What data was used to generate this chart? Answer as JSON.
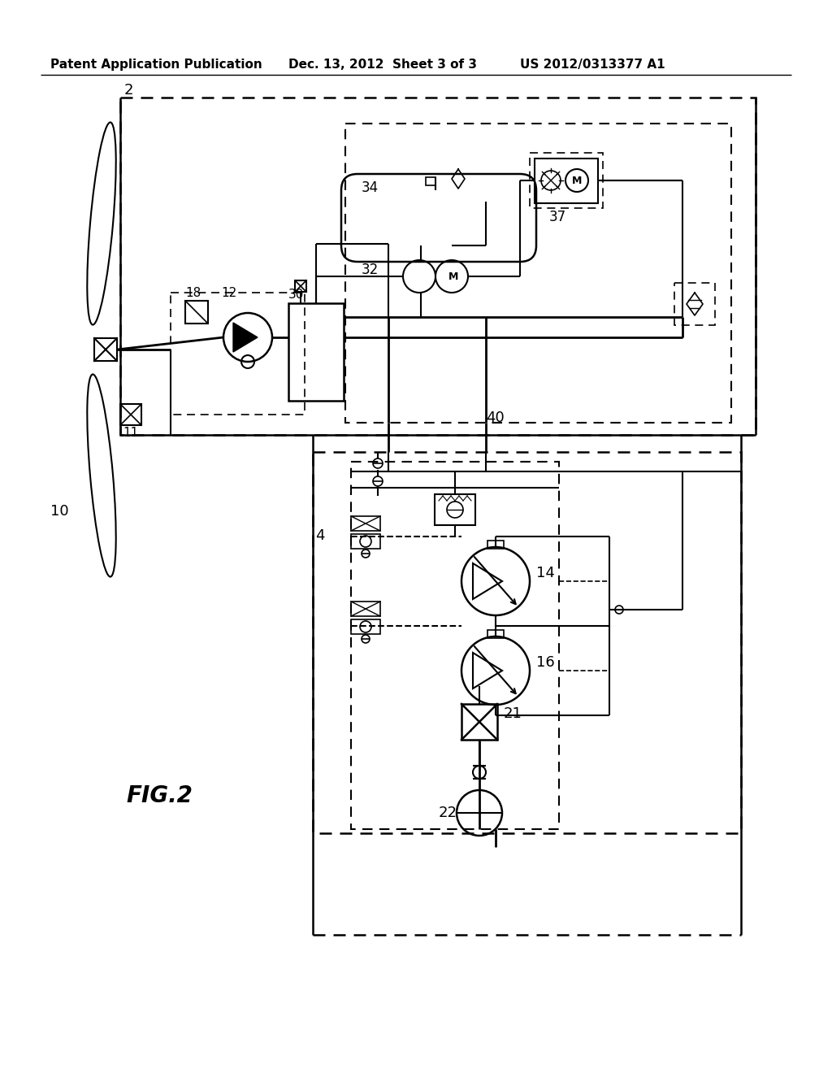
{
  "title_left": "Patent Application Publication",
  "title_mid": "Dec. 13, 2012  Sheet 3 of 3",
  "title_right": "US 2012/0313377 A1",
  "fig_label": "FIG.2",
  "bg_color": "#ffffff"
}
